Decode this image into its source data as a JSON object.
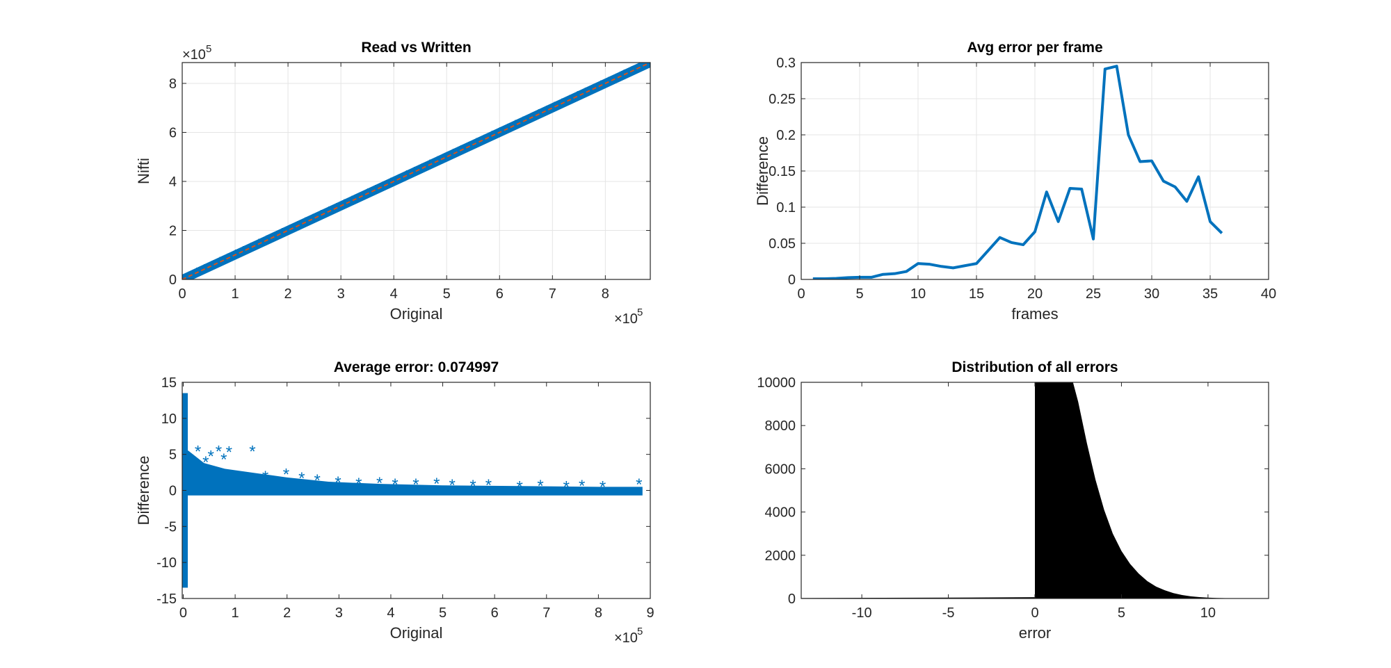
{
  "chart_data": [
    {
      "type": "scatter",
      "title": "Read vs Written",
      "xlabel": "Original",
      "ylabel": "Nifti",
      "xlim": [
        0,
        8.85
      ],
      "ylim": [
        0,
        8.85
      ],
      "x_exponent": "×10",
      "x_exponent_power": "5",
      "y_exponent": "×10",
      "y_exponent_power": "5",
      "xticks": [
        "0",
        "1",
        "2",
        "3",
        "4",
        "5",
        "6",
        "7",
        "8"
      ],
      "yticks": [
        "0",
        "2",
        "4",
        "6",
        "8"
      ],
      "grid": true,
      "series": [
        {
          "marker": "*",
          "color": "#0072BD",
          "x": [
            0,
            8.82
          ],
          "y": [
            0,
            8.82
          ]
        },
        {
          "line": "dashed",
          "color": "#D95319",
          "x": [
            0,
            8.82
          ],
          "y": [
            0,
            8.82
          ]
        }
      ]
    },
    {
      "type": "line",
      "title": "Avg error per frame",
      "xlabel": "frames",
      "ylabel": "Difference",
      "xlim": [
        0,
        40
      ],
      "ylim": [
        0,
        0.3
      ],
      "xticks": [
        "0",
        "5",
        "10",
        "15",
        "20",
        "25",
        "30",
        "35",
        "40"
      ],
      "yticks": [
        "0",
        "0.05",
        "0.1",
        "0.15",
        "0.2",
        "0.25",
        "0.3"
      ],
      "grid": true,
      "series": [
        {
          "color": "#0072BD",
          "x": [
            1,
            2,
            3,
            4,
            5,
            6,
            7,
            8,
            9,
            10,
            11,
            12,
            13,
            14,
            15,
            16,
            17,
            18,
            19,
            20,
            21,
            22,
            23,
            24,
            25,
            26,
            27,
            28,
            29,
            30,
            31,
            32,
            33,
            34,
            35,
            36
          ],
          "y": [
            0.001,
            0.001,
            0.0015,
            0.0025,
            0.003,
            0.003,
            0.007,
            0.008,
            0.011,
            0.022,
            0.021,
            0.018,
            0.016,
            0.019,
            0.022,
            0.04,
            0.058,
            0.051,
            0.048,
            0.066,
            0.121,
            0.08,
            0.126,
            0.125,
            0.056,
            0.291,
            0.295,
            0.2,
            0.163,
            0.164,
            0.136,
            0.128,
            0.108,
            0.142,
            0.08,
            0.064
          ]
        }
      ]
    },
    {
      "type": "scatter",
      "title": "Average error: 0.074997",
      "xlabel": "Original",
      "ylabel": "Difference",
      "xlim": [
        -0.02,
        9
      ],
      "ylim": [
        -15,
        15
      ],
      "x_exponent": "×10",
      "x_exponent_power": "5",
      "xticks": [
        "0",
        "1",
        "2",
        "3",
        "4",
        "5",
        "6",
        "7",
        "8",
        "9"
      ],
      "yticks": [
        "-15",
        "-10",
        "-5",
        "0",
        "5",
        "10",
        "15"
      ],
      "grid": false,
      "series": [
        {
          "marker": "*",
          "color": "#0072BD",
          "x": [
            0.3,
            0.45,
            0.55,
            0.7,
            0.8,
            0.9,
            1.35,
            1.6,
            2.0,
            2.3,
            2.6,
            3.0,
            3.4,
            3.8,
            4.1,
            4.5,
            4.9,
            5.2,
            5.6,
            5.9,
            6.5,
            6.9,
            7.4,
            7.7,
            8.1,
            8.8
          ],
          "y": [
            5.5,
            4.0,
            4.8,
            5.5,
            4.4,
            5.4,
            5.5,
            2.0,
            2.3,
            1.8,
            1.5,
            1.2,
            1.0,
            1.1,
            0.9,
            0.9,
            1.0,
            0.8,
            0.7,
            0.8,
            0.6,
            0.7,
            0.6,
            0.7,
            0.6,
            0.9
          ]
        }
      ]
    },
    {
      "type": "bar",
      "title": "Distribution of all errors",
      "xlabel": "error",
      "ylabel": "",
      "xlim": [
        -13.5,
        13.5
      ],
      "ylim": [
        0,
        10000
      ],
      "xticks": [
        "-10",
        "-5",
        "0",
        "5",
        "10"
      ],
      "yticks": [
        "0",
        "2000",
        "4000",
        "6000",
        "8000",
        "10000"
      ],
      "grid": false,
      "series": [
        {
          "color": "#000000",
          "x": [
            -13.5,
            -5,
            0,
            0.5,
            1,
            1.5,
            2,
            2.2,
            2.5,
            3,
            3.5,
            4,
            4.5,
            5,
            5.5,
            6,
            6.5,
            7,
            7.5,
            8,
            8.5,
            9,
            9.5,
            10,
            10.5,
            11,
            12,
            13.5
          ],
          "y": [
            20,
            40,
            60,
            10000,
            10000,
            10000,
            10000,
            10000,
            9100,
            7200,
            5500,
            4100,
            3000,
            2200,
            1600,
            1150,
            800,
            550,
            380,
            250,
            160,
            100,
            65,
            40,
            25,
            15,
            8,
            5
          ]
        }
      ]
    }
  ]
}
